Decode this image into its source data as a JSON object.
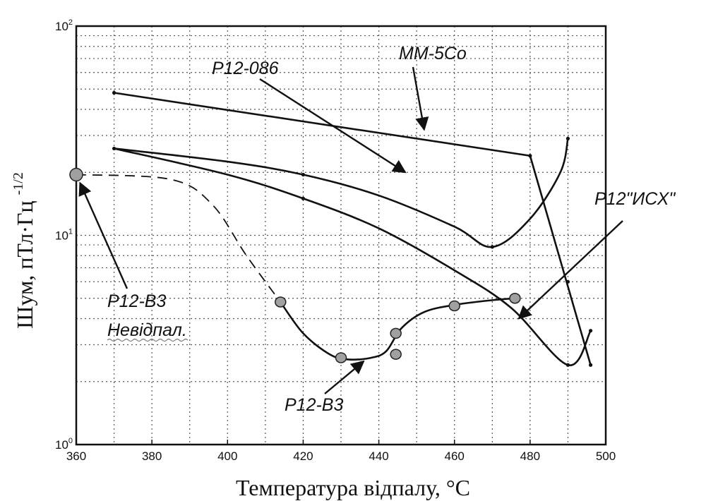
{
  "chart_data": {
    "type": "line",
    "xlabel": "Температура відпалу, °С",
    "ylabel": "Шум, пТл·Гц",
    "ylabel_exp": "-1/2",
    "xlim": [
      360,
      500
    ],
    "ylim": [
      1,
      100
    ],
    "yscale": "log",
    "grid": true,
    "x_ticks": [
      "360",
      "380",
      "400",
      "420",
      "440",
      "460",
      "480",
      "500"
    ],
    "y_ticks": [
      {
        "base": "10",
        "exp": "0"
      },
      {
        "base": "10",
        "exp": "1"
      },
      {
        "base": "10",
        "exp": "2"
      }
    ],
    "series": [
      {
        "name": "MM-5Co",
        "style": "solid",
        "points": [
          [
            370,
            48
          ],
          [
            480,
            24
          ],
          [
            496,
            2.4
          ]
        ]
      },
      {
        "name": "P12-086",
        "style": "solid",
        "points": [
          [
            370,
            26
          ],
          [
            400,
            22.5
          ],
          [
            420,
            19.5
          ],
          [
            440,
            15.5
          ],
          [
            460,
            11
          ],
          [
            470,
            8.8
          ],
          [
            480,
            12
          ],
          [
            488,
            20
          ],
          [
            490,
            29
          ]
        ]
      },
      {
        "name": "P12\"ИСХ\"",
        "style": "solid",
        "points": [
          [
            370,
            26
          ],
          [
            400,
            19.5
          ],
          [
            420,
            15
          ],
          [
            440,
            10.8
          ],
          [
            460,
            6.8
          ],
          [
            475,
            4.5
          ],
          [
            490,
            2.4
          ],
          [
            496,
            3.5
          ]
        ]
      },
      {
        "name": "P12-В3 Невідпал.",
        "style": "dashed",
        "points": [
          [
            360,
            19.5
          ],
          [
            385,
            18.5
          ],
          [
            396,
            14
          ],
          [
            405,
            8
          ],
          [
            414,
            4.8
          ]
        ]
      },
      {
        "name": "P12-В3",
        "style": "solid",
        "points": [
          [
            414,
            4.8
          ],
          [
            420,
            3.4
          ],
          [
            427,
            2.7
          ],
          [
            432,
            2.55
          ],
          [
            438,
            2.6
          ],
          [
            442,
            2.8
          ],
          [
            446,
            3.6
          ],
          [
            452,
            4.3
          ],
          [
            460,
            4.65
          ],
          [
            470,
            4.9
          ],
          [
            476,
            5.0
          ]
        ]
      }
    ],
    "markers": [
      {
        "x": 360,
        "y": 19.5,
        "size": "large"
      },
      {
        "x": 414,
        "y": 4.8
      },
      {
        "x": 430,
        "y": 2.6
      },
      {
        "x": 444.5,
        "y": 3.4
      },
      {
        "x": 444.5,
        "y": 2.7
      },
      {
        "x": 460,
        "y": 4.6
      },
      {
        "x": 476,
        "y": 5.0
      }
    ],
    "small_points": [
      [
        370,
        48
      ],
      [
        480,
        24
      ],
      [
        496,
        2.4
      ],
      [
        370,
        26
      ],
      [
        420,
        19.5
      ],
      [
        470,
        8.8
      ],
      [
        490,
        29
      ],
      [
        420,
        15
      ],
      [
        490,
        6
      ],
      [
        490,
        2.4
      ],
      [
        496,
        3.5
      ]
    ],
    "annotations": [
      {
        "text": "MM-5Co",
        "tip": [
          452,
          32
        ]
      },
      {
        "text": "P12-086",
        "tip": [
          447,
          20
        ]
      },
      {
        "text": "P12\"ИСХ\"",
        "tip": [
          477,
          4.0
        ]
      },
      {
        "text": "P12-В3",
        "tip": [
          436,
          2.5
        ]
      },
      {
        "text": "P12-В3",
        "tip": [
          361,
          17.8
        ]
      },
      {
        "text": "Невідпал.",
        "tip": null
      }
    ]
  }
}
